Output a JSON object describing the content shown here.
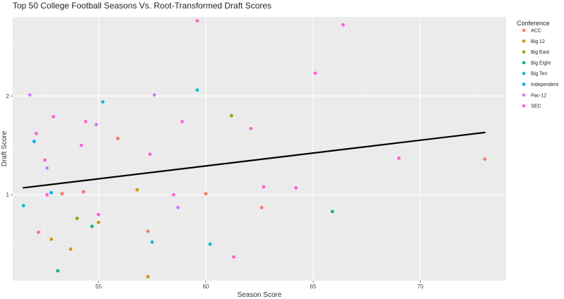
{
  "chart_data": {
    "type": "scatter",
    "title": "Top 50 College Football Seasons Vs. Root-Transformed Draft Scores",
    "xlabel": "Season Score",
    "ylabel": "Draft Score",
    "xlim": [
      51.0,
      74.0
    ],
    "ylim": [
      0.13,
      2.8
    ],
    "x_ticks": [
      55,
      60,
      65,
      70
    ],
    "y_ticks": [
      1,
      2
    ],
    "grid": true,
    "legend": {
      "title": "Conference",
      "placement": "right",
      "entries": [
        "ACC",
        "Big 12",
        "Big East",
        "Big Eight",
        "Big Ten",
        "Independent",
        "Pac-12",
        "SEC"
      ]
    },
    "colors": {
      "ACC": "#F8766D",
      "Big 12": "#CD9600",
      "Big East": "#7CAE00",
      "Big Eight": "#00BE67",
      "Big Ten": "#00BFC4",
      "Independent": "#00A9FF",
      "Pac-12": "#C77CFF",
      "SEC": "#FF61CC"
    },
    "trend_line": {
      "x": [
        51.5,
        73.0
      ],
      "y": [
        1.07,
        1.63
      ]
    },
    "series": [
      {
        "name": "ACC",
        "points": [
          [
            53.3,
            1.01
          ],
          [
            54.3,
            1.03
          ],
          [
            55.9,
            1.57
          ],
          [
            57.3,
            0.63
          ],
          [
            60.0,
            1.01
          ],
          [
            62.6,
            0.87
          ],
          [
            73.0,
            1.36
          ]
        ]
      },
      {
        "name": "Big 12",
        "points": [
          [
            52.8,
            0.55
          ],
          [
            53.7,
            0.45
          ],
          [
            55.0,
            0.72
          ],
          [
            56.8,
            1.05
          ],
          [
            57.3,
            0.17
          ]
        ]
      },
      {
        "name": "Big East",
        "points": [
          [
            54.0,
            0.76
          ],
          [
            61.2,
            1.8
          ]
        ]
      },
      {
        "name": "Big Eight",
        "points": [
          [
            53.1,
            0.23
          ],
          [
            54.7,
            0.68
          ],
          [
            65.9,
            0.83
          ]
        ]
      },
      {
        "name": "Big Ten",
        "points": [
          [
            51.5,
            0.89
          ],
          [
            55.2,
            1.94
          ],
          [
            57.5,
            0.52
          ],
          [
            59.6,
            2.06
          ],
          [
            60.2,
            0.5
          ]
        ]
      },
      {
        "name": "Independent",
        "points": [
          [
            52.0,
            1.54
          ],
          [
            52.8,
            1.02
          ]
        ]
      },
      {
        "name": "Pac-12",
        "points": [
          [
            51.8,
            2.01
          ],
          [
            52.6,
            1.27
          ],
          [
            54.9,
            1.71
          ],
          [
            57.6,
            2.01
          ],
          [
            58.7,
            0.87
          ]
        ]
      },
      {
        "name": "SEC",
        "points": [
          [
            59.6,
            2.76
          ],
          [
            66.4,
            2.72
          ],
          [
            65.1,
            2.23
          ],
          [
            52.1,
            1.62
          ],
          [
            52.9,
            1.79
          ],
          [
            52.5,
            1.35
          ],
          [
            54.2,
            1.5
          ],
          [
            54.4,
            1.74
          ],
          [
            55.0,
            0.8
          ],
          [
            57.4,
            1.41
          ],
          [
            58.5,
            1.0
          ],
          [
            58.9,
            1.74
          ],
          [
            62.1,
            1.67
          ],
          [
            62.7,
            1.08
          ],
          [
            64.2,
            1.07
          ],
          [
            69.0,
            1.37
          ],
          [
            61.3,
            0.37
          ],
          [
            52.6,
            1.0
          ],
          [
            52.2,
            0.62
          ]
        ]
      }
    ]
  }
}
